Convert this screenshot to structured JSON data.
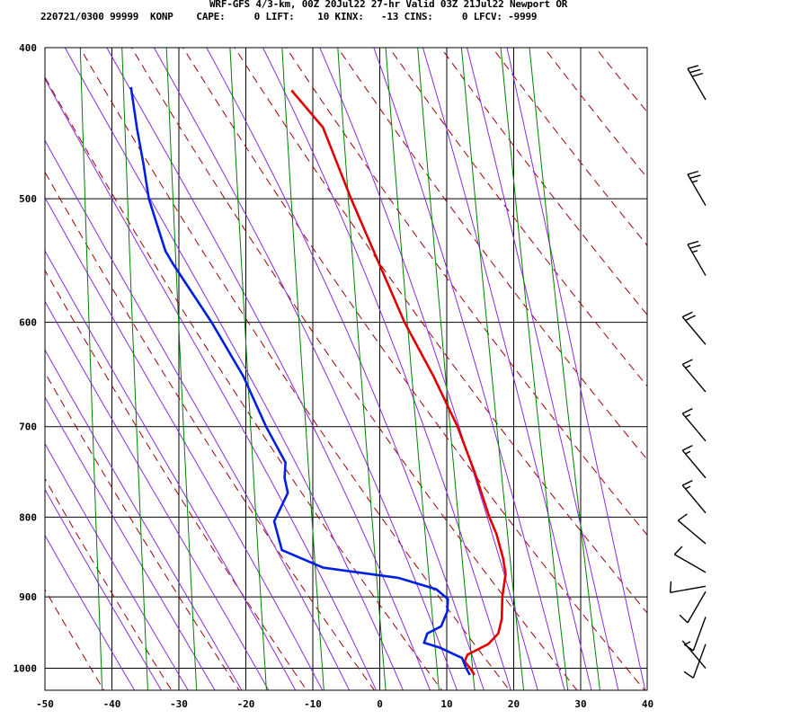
{
  "header": {
    "title": "WRF-GFS 4/3-km, 00Z 20Jul22 27-hr Valid 03Z 21Jul22 Newport OR",
    "stats": "220721/0300 99999  KONP    CAPE:     0 LIFT:    10 KINX:   -13 CINS:     0 LFCV: -9999"
  },
  "colors": {
    "temperature": "#e00000",
    "dewpoint": "#0020e0",
    "dry_adiabat": "#a00000",
    "moist_adiabat": "#8a2be2",
    "mixing_ratio": "#008000",
    "grid": "#000000"
  },
  "chart_data": {
    "type": "line",
    "subtype": "skew-T log-p sounding",
    "x_axis": {
      "units": "°C",
      "ticks": [
        -50,
        -40,
        -30,
        -20,
        -10,
        0,
        10,
        20,
        30,
        40
      ],
      "range": [
        -50,
        40
      ]
    },
    "y_axis": {
      "units": "hPa",
      "scale": "log",
      "ticks": [
        400,
        500,
        600,
        700,
        800,
        900,
        1000
      ],
      "range": [
        1030,
        400
      ]
    },
    "series": [
      {
        "role": "temperature",
        "points": [
          [
            1010,
            14.2
          ],
          [
            1000,
            13.5
          ],
          [
            990,
            12.6
          ],
          [
            980,
            13.0
          ],
          [
            965,
            16.0
          ],
          [
            950,
            17.4
          ],
          [
            930,
            17.8
          ],
          [
            900,
            17.7
          ],
          [
            870,
            18.0
          ],
          [
            850,
            17.5
          ],
          [
            820,
            16.3
          ],
          [
            800,
            15.1
          ],
          [
            750,
            12.6
          ],
          [
            700,
            9.6
          ],
          [
            650,
            5.6
          ],
          [
            600,
            0.8
          ],
          [
            550,
            -3.5
          ],
          [
            500,
            -8.2
          ],
          [
            450,
            -13.0
          ],
          [
            426,
            -18.0
          ]
        ]
      },
      {
        "role": "dewpoint",
        "points": [
          [
            1010,
            13.5
          ],
          [
            1000,
            12.9
          ],
          [
            985,
            12.2
          ],
          [
            970,
            8.8
          ],
          [
            963,
            6.4
          ],
          [
            950,
            6.8
          ],
          [
            940,
            8.8
          ],
          [
            920,
            9.6
          ],
          [
            903,
            9.6
          ],
          [
            890,
            7.8
          ],
          [
            875,
            2.0
          ],
          [
            862,
            -9.3
          ],
          [
            840,
            -15.6
          ],
          [
            805,
            -17.0
          ],
          [
            772,
            -15.2
          ],
          [
            755,
            -15.8
          ],
          [
            738,
            -15.8
          ],
          [
            700,
            -19.0
          ],
          [
            650,
            -22.8
          ],
          [
            600,
            -28.0
          ],
          [
            550,
            -34.3
          ],
          [
            540,
            -35.5
          ],
          [
            500,
            -38.4
          ],
          [
            475,
            -39.5
          ],
          [
            450,
            -40.8
          ],
          [
            424,
            -42.0
          ]
        ]
      }
    ],
    "wind_barbs": [
      {
        "p": 432,
        "dir": 330,
        "spd": 30
      },
      {
        "p": 505,
        "dir": 330,
        "spd": 25
      },
      {
        "p": 560,
        "dir": 330,
        "spd": 25
      },
      {
        "p": 620,
        "dir": 320,
        "spd": 20
      },
      {
        "p": 665,
        "dir": 320,
        "spd": 15
      },
      {
        "p": 715,
        "dir": 320,
        "spd": 15
      },
      {
        "p": 755,
        "dir": 320,
        "spd": 15
      },
      {
        "p": 795,
        "dir": 320,
        "spd": 15
      },
      {
        "p": 832,
        "dir": 310,
        "spd": 10
      },
      {
        "p": 868,
        "dir": 300,
        "spd": 10
      },
      {
        "p": 886,
        "dir": 260,
        "spd": 10
      },
      {
        "p": 893,
        "dir": 210,
        "spd": 10
      },
      {
        "p": 927,
        "dir": 200,
        "spd": 10
      },
      {
        "p": 965,
        "dir": 200,
        "spd": 10
      },
      {
        "p": 1000,
        "dir": 320,
        "spd": 5
      }
    ]
  }
}
